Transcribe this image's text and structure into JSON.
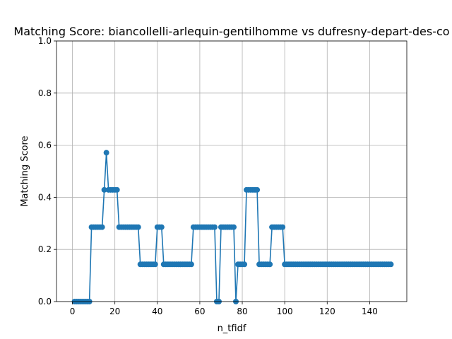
{
  "chart_data": {
    "type": "line",
    "title": "Matching Score: biancollelli-arlequin-gentilhomme vs dufresny-depart-des-co",
    "xlabel": "n_tfidf",
    "ylabel": "Matching Score",
    "xlim": [
      -7.5,
      157.5
    ],
    "ylim": [
      0,
      1
    ],
    "xticks": [
      0,
      20,
      40,
      60,
      80,
      100,
      120,
      140
    ],
    "yticks": [
      0.0,
      0.2,
      0.4,
      0.6,
      0.8,
      1.0
    ],
    "xtick_labels": [
      "0",
      "20",
      "40",
      "60",
      "80",
      "100",
      "120",
      "140"
    ],
    "ytick_labels": [
      "0.0",
      "0.2",
      "0.4",
      "0.6",
      "0.8",
      "1.0"
    ],
    "grid": true,
    "color": "#1f77b4",
    "marker": "circle",
    "series": [
      {
        "x": [
          1,
          2,
          3,
          4,
          5,
          6,
          7,
          8,
          9,
          10,
          11,
          12,
          13,
          14,
          15,
          16,
          17,
          18,
          19,
          20,
          21,
          22,
          23,
          24,
          25,
          26,
          27,
          28,
          29,
          30,
          31,
          32,
          33,
          34,
          35,
          36,
          37,
          38,
          39,
          40,
          41,
          42,
          43,
          44,
          45,
          46,
          47,
          48,
          49,
          50,
          51,
          52,
          53,
          54,
          55,
          56,
          57,
          58,
          59,
          60,
          61,
          62,
          63,
          64,
          65,
          66,
          67,
          68,
          69,
          70,
          71,
          72,
          73,
          74,
          75,
          76,
          77,
          78,
          79,
          80,
          81,
          82,
          83,
          84,
          85,
          86,
          87,
          88,
          89,
          90,
          91,
          92,
          93,
          94,
          95,
          96,
          97,
          98,
          99,
          100,
          101,
          102,
          103,
          104,
          105,
          106,
          107,
          108,
          109,
          110,
          111,
          112,
          113,
          114,
          115,
          116,
          117,
          118,
          119,
          120,
          121,
          122,
          123,
          124,
          125,
          126,
          127,
          128,
          129,
          130,
          131,
          132,
          133,
          134,
          135,
          136,
          137,
          138,
          139,
          140,
          141,
          142,
          143,
          144,
          145,
          146,
          147,
          148,
          149,
          150
        ],
        "values": [
          0,
          0,
          0,
          0,
          0,
          0,
          0,
          0,
          0.2857,
          0.2857,
          0.2857,
          0.2857,
          0.2857,
          0.2857,
          0.4286,
          0.5714,
          0.4286,
          0.4286,
          0.4286,
          0.4286,
          0.4286,
          0.2857,
          0.2857,
          0.2857,
          0.2857,
          0.2857,
          0.2857,
          0.2857,
          0.2857,
          0.2857,
          0.2857,
          0.1429,
          0.1429,
          0.1429,
          0.1429,
          0.1429,
          0.1429,
          0.1429,
          0.1429,
          0.2857,
          0.2857,
          0.2857,
          0.1429,
          0.1429,
          0.1429,
          0.1429,
          0.1429,
          0.1429,
          0.1429,
          0.1429,
          0.1429,
          0.1429,
          0.1429,
          0.1429,
          0.1429,
          0.1429,
          0.2857,
          0.2857,
          0.2857,
          0.2857,
          0.2857,
          0.2857,
          0.2857,
          0.2857,
          0.2857,
          0.2857,
          0.2857,
          0,
          0,
          0.2857,
          0.2857,
          0.2857,
          0.2857,
          0.2857,
          0.2857,
          0.2857,
          0,
          0.1429,
          0.1429,
          0.1429,
          0.1429,
          0.4286,
          0.4286,
          0.4286,
          0.4286,
          0.4286,
          0.4286,
          0.1429,
          0.1429,
          0.1429,
          0.1429,
          0.1429,
          0.1429,
          0.2857,
          0.2857,
          0.2857,
          0.2857,
          0.2857,
          0.2857,
          0.1429,
          0.1429,
          0.1429,
          0.1429,
          0.1429,
          0.1429,
          0.1429,
          0.1429,
          0.1429,
          0.1429,
          0.1429,
          0.1429,
          0.1429,
          0.1429,
          0.1429,
          0.1429,
          0.1429,
          0.1429,
          0.1429,
          0.1429,
          0.1429,
          0.1429,
          0.1429,
          0.1429,
          0.1429,
          0.1429,
          0.1429,
          0.1429,
          0.1429,
          0.1429,
          0.1429,
          0.1429,
          0.1429,
          0.1429,
          0.1429,
          0.1429,
          0.1429,
          0.1429,
          0.1429,
          0.1429,
          0.1429,
          0.1429,
          0.1429,
          0.1429,
          0.1429,
          0.1429,
          0.1429,
          0.1429,
          0.1429,
          0.1429,
          0.1429
        ]
      }
    ]
  }
}
